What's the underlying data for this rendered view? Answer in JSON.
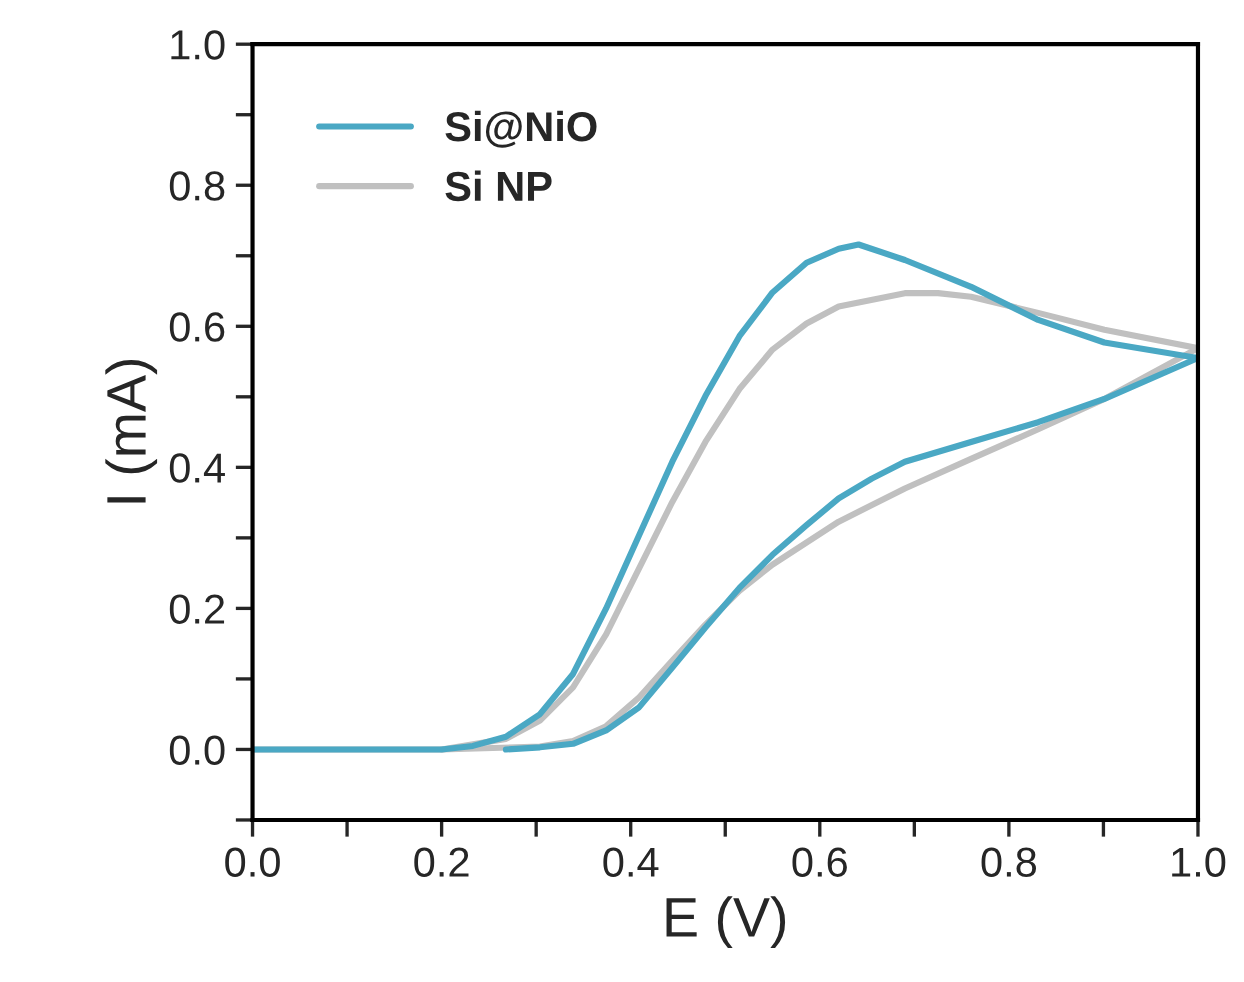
{
  "chart_data": {
    "type": "line",
    "xlabel": "E (V)",
    "ylabel": "I (mA)",
    "xlim": [
      0.0,
      1.0
    ],
    "ylim": [
      -0.1,
      1.0
    ],
    "xticks": [
      {
        "value": 0.0,
        "label": "0.0"
      },
      {
        "value": 0.1,
        "label": null
      },
      {
        "value": 0.2,
        "label": "0.2"
      },
      {
        "value": 0.3,
        "label": null
      },
      {
        "value": 0.4,
        "label": "0.4"
      },
      {
        "value": 0.5,
        "label": null
      },
      {
        "value": 0.6,
        "label": "0.6"
      },
      {
        "value": 0.7,
        "label": null
      },
      {
        "value": 0.8,
        "label": "0.8"
      },
      {
        "value": 0.9,
        "label": null
      },
      {
        "value": 1.0,
        "label": "1.0"
      }
    ],
    "yticks": [
      {
        "value": -0.1,
        "label": null
      },
      {
        "value": 0.0,
        "label": "0.0"
      },
      {
        "value": 0.1,
        "label": null
      },
      {
        "value": 0.2,
        "label": "0.2"
      },
      {
        "value": 0.3,
        "label": null
      },
      {
        "value": 0.4,
        "label": "0.4"
      },
      {
        "value": 0.5,
        "label": null
      },
      {
        "value": 0.6,
        "label": "0.6"
      },
      {
        "value": 0.7,
        "label": null
      },
      {
        "value": 0.8,
        "label": "0.8"
      },
      {
        "value": 0.9,
        "label": null
      },
      {
        "value": 1.0,
        "label": "1.0"
      }
    ],
    "grid": false,
    "legend": "top left",
    "marker": "none",
    "line_style": "solid",
    "series": [
      {
        "name": "Si NP",
        "color": "#c0c0c0",
        "x": [
          0.0,
          0.2,
          0.268,
          0.304,
          0.339,
          0.374,
          0.409,
          0.444,
          0.479,
          0.515,
          0.55,
          0.586,
          0.62,
          0.69,
          0.725,
          0.76,
          0.831,
          0.901,
          1.0
        ],
        "values": [
          0.0,
          0.0,
          0.015,
          0.041,
          0.088,
          0.163,
          0.257,
          0.351,
          0.436,
          0.511,
          0.567,
          0.604,
          0.628,
          0.647,
          0.647,
          0.642,
          0.619,
          0.595,
          0.569
        ]
      },
      {
        "color": "#c0c0c0",
        "x": [
          0.2,
          0.304,
          0.339,
          0.374,
          0.409,
          0.444,
          0.479,
          0.515,
          0.55,
          0.62,
          0.69,
          0.76,
          0.831,
          0.901,
          1.0
        ],
        "values": [
          0.0,
          0.004,
          0.012,
          0.033,
          0.074,
          0.126,
          0.177,
          0.225,
          0.262,
          0.323,
          0.37,
          0.412,
          0.454,
          0.497,
          0.569
        ]
      },
      {
        "name": "Si@NiO",
        "color": "#4aa8c4",
        "x": [
          0.0,
          0.2,
          0.233,
          0.268,
          0.304,
          0.339,
          0.374,
          0.409,
          0.444,
          0.479,
          0.515,
          0.55,
          0.586,
          0.62,
          0.641,
          0.69,
          0.76,
          0.831,
          0.901,
          1.0
        ],
        "values": [
          0.0,
          0.0,
          0.005,
          0.018,
          0.05,
          0.107,
          0.2,
          0.304,
          0.408,
          0.501,
          0.586,
          0.648,
          0.69,
          0.71,
          0.716,
          0.694,
          0.656,
          0.609,
          0.577,
          0.555
        ]
      },
      {
        "color": "#4aa8c4",
        "x": [
          0.268,
          0.304,
          0.339,
          0.374,
          0.409,
          0.444,
          0.479,
          0.515,
          0.55,
          0.586,
          0.62,
          0.655,
          0.69,
          0.76,
          0.831,
          0.901,
          1.0
        ],
        "values": [
          0.0,
          0.003,
          0.008,
          0.027,
          0.06,
          0.116,
          0.173,
          0.229,
          0.276,
          0.318,
          0.356,
          0.384,
          0.408,
          0.436,
          0.464,
          0.497,
          0.555
        ]
      }
    ]
  }
}
